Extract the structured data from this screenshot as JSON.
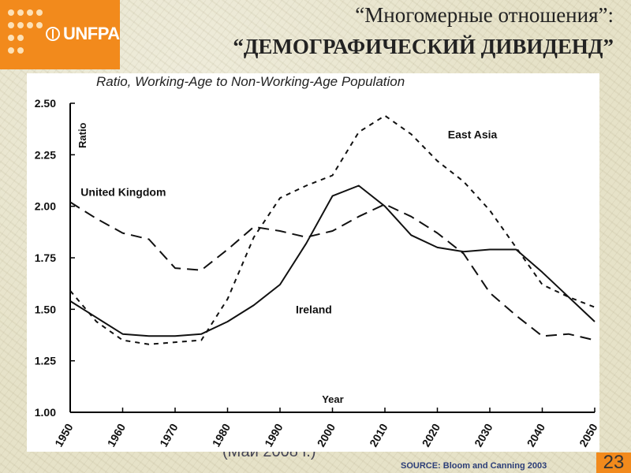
{
  "header": {
    "logo_text": "UNFPA",
    "title_line1": "“Многомерные отношения”:",
    "title_line2": "“ДЕМОГРАФИЧЕСКИЙ ДИВИДЕНД”"
  },
  "footer": {
    "source": "SOURCE: Bloom and Canning 2003",
    "page_number": "23",
    "obscured_text": "(Май 2008 г.)"
  },
  "colors": {
    "accent": "#f28a1c",
    "source_text": "#2c3e78"
  },
  "chart_data": {
    "type": "line",
    "title": "Ratio, Working-Age to Non-Working-Age Population",
    "xlabel": "Year",
    "ylabel": "Ratio",
    "xlim": [
      1950,
      2050
    ],
    "ylim": [
      1.0,
      2.5
    ],
    "x_ticks": [
      "1950",
      "1960",
      "1970",
      "1980",
      "1990",
      "2000",
      "2010",
      "2020",
      "2030",
      "2040",
      "2050"
    ],
    "y_ticks": [
      "1.00",
      "1.25",
      "1.50",
      "1.75",
      "2.00",
      "2.25",
      "2.50"
    ],
    "grid": false,
    "series": [
      {
        "name": "Ireland",
        "style": "solid",
        "points": [
          [
            1950,
            1.54
          ],
          [
            1955,
            1.46
          ],
          [
            1960,
            1.38
          ],
          [
            1965,
            1.37
          ],
          [
            1970,
            1.37
          ],
          [
            1975,
            1.38
          ],
          [
            1980,
            1.44
          ],
          [
            1985,
            1.52
          ],
          [
            1990,
            1.62
          ],
          [
            1995,
            1.82
          ],
          [
            2000,
            2.05
          ],
          [
            2005,
            2.1
          ],
          [
            2010,
            2.0
          ],
          [
            2015,
            1.86
          ],
          [
            2020,
            1.8
          ],
          [
            2025,
            1.78
          ],
          [
            2030,
            1.79
          ],
          [
            2035,
            1.79
          ],
          [
            2040,
            1.68
          ],
          [
            2045,
            1.56
          ],
          [
            2050,
            1.44
          ]
        ]
      },
      {
        "name": "United Kingdom",
        "style": "long-dash",
        "points": [
          [
            1950,
            2.02
          ],
          [
            1955,
            1.94
          ],
          [
            1960,
            1.87
          ],
          [
            1965,
            1.84
          ],
          [
            1970,
            1.7
          ],
          [
            1975,
            1.69
          ],
          [
            1980,
            1.79
          ],
          [
            1985,
            1.9
          ],
          [
            1990,
            1.88
          ],
          [
            1995,
            1.85
          ],
          [
            2000,
            1.88
          ],
          [
            2005,
            1.95
          ],
          [
            2010,
            2.01
          ],
          [
            2015,
            1.95
          ],
          [
            2020,
            1.87
          ],
          [
            2025,
            1.77
          ],
          [
            2030,
            1.58
          ],
          [
            2035,
            1.47
          ],
          [
            2040,
            1.37
          ],
          [
            2045,
            1.38
          ],
          [
            2050,
            1.35
          ]
        ]
      },
      {
        "name": "East Asia",
        "style": "short-dash",
        "points": [
          [
            1950,
            1.59
          ],
          [
            1955,
            1.44
          ],
          [
            1960,
            1.35
          ],
          [
            1965,
            1.33
          ],
          [
            1970,
            1.34
          ],
          [
            1975,
            1.35
          ],
          [
            1980,
            1.55
          ],
          [
            1985,
            1.85
          ],
          [
            1990,
            2.04
          ],
          [
            1995,
            2.1
          ],
          [
            2000,
            2.15
          ],
          [
            2005,
            2.36
          ],
          [
            2010,
            2.44
          ],
          [
            2015,
            2.35
          ],
          [
            2020,
            2.22
          ],
          [
            2025,
            2.12
          ],
          [
            2030,
            1.98
          ],
          [
            2035,
            1.8
          ],
          [
            2040,
            1.62
          ],
          [
            2045,
            1.56
          ],
          [
            2050,
            1.51
          ]
        ]
      }
    ],
    "annotations": [
      {
        "text": "East Asia",
        "x": 2022,
        "y": 2.33
      },
      {
        "text": "United Kingdom",
        "x": 1952,
        "y": 2.05
      },
      {
        "text": "Ireland",
        "x": 1993,
        "y": 1.48
      }
    ]
  }
}
